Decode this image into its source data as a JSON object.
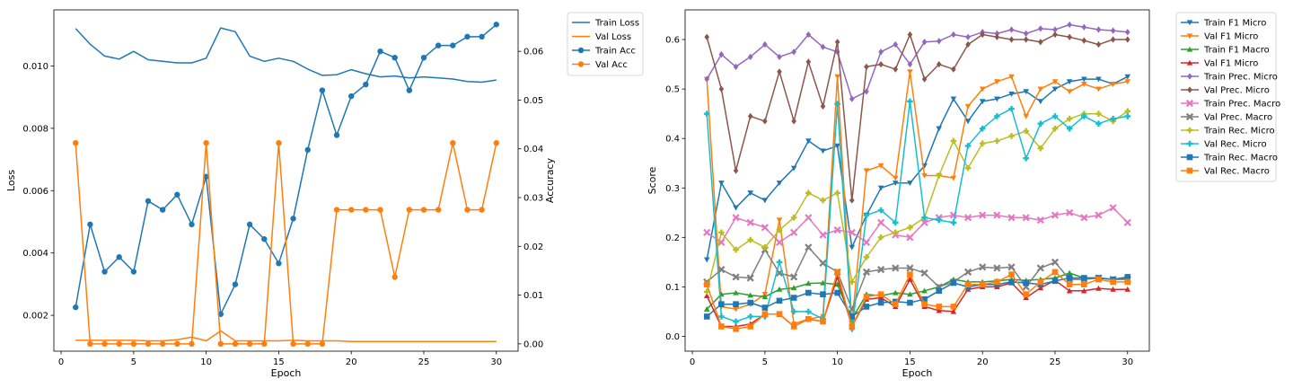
{
  "chart_data": [
    {
      "type": "line",
      "xlabel": "Epoch",
      "ylabel": "Loss",
      "ylabel_right": "Accuracy",
      "xlim": [
        -0.5,
        31.5
      ],
      "ylim": [
        0.00085,
        0.0118
      ],
      "ylim_right": [
        -0.0015,
        0.0685
      ],
      "x_ticks": [
        0,
        5,
        10,
        15,
        20,
        25,
        30
      ],
      "y_ticks": [
        0.002,
        0.004,
        0.006,
        0.008,
        0.01
      ],
      "y_ticks_right": [
        0.0,
        0.01,
        0.02,
        0.03,
        0.04,
        0.05,
        0.06
      ],
      "legend_position": "outside upper right",
      "x": [
        1,
        2,
        3,
        4,
        5,
        6,
        7,
        8,
        9,
        10,
        11,
        12,
        13,
        14,
        15,
        16,
        17,
        18,
        19,
        20,
        21,
        22,
        23,
        24,
        25,
        26,
        27,
        28,
        29,
        30
      ],
      "series": [
        {
          "name": "Train Loss",
          "axis": "left",
          "color": "#1f77b4",
          "marker": "none",
          "values": [
            0.0112,
            0.0107,
            0.01032,
            0.01022,
            0.01047,
            0.0102,
            0.01015,
            0.0101,
            0.0101,
            0.01025,
            0.01122,
            0.0111,
            0.01032,
            0.01015,
            0.01025,
            0.01015,
            0.0099,
            0.0097,
            0.00972,
            0.00988,
            0.00975,
            0.00965,
            0.00968,
            0.00962,
            0.00965,
            0.00962,
            0.00958,
            0.0095,
            0.00948,
            0.00955
          ]
        },
        {
          "name": "Val Loss",
          "axis": "left",
          "color": "#ff7f0e",
          "marker": "none",
          "values": [
            0.0012,
            0.0012,
            0.0012,
            0.0012,
            0.0012,
            0.00118,
            0.00118,
            0.00122,
            0.0013,
            0.00118,
            0.0015,
            0.00118,
            0.00118,
            0.00118,
            0.00118,
            0.0012,
            0.00118,
            0.00118,
            0.00118,
            0.00116,
            0.00116,
            0.00116,
            0.00116,
            0.00116,
            0.00116,
            0.00116,
            0.00116,
            0.00116,
            0.00116,
            0.00116
          ]
        },
        {
          "name": "Train Acc",
          "axis": "right",
          "color": "#1f77b4",
          "marker": "circle",
          "values": [
            0.0075,
            0.0245,
            0.0148,
            0.0178,
            0.0148,
            0.0293,
            0.0275,
            0.0306,
            0.0245,
            0.0343,
            0.0061,
            0.0122,
            0.0245,
            0.0215,
            0.0165,
            0.0257,
            0.0398,
            0.052,
            0.0428,
            0.0508,
            0.0532,
            0.06,
            0.0587,
            0.052,
            0.0587,
            0.0612,
            0.0612,
            0.063,
            0.063,
            0.0655
          ]
        },
        {
          "name": "Val Acc",
          "axis": "right",
          "color": "#ff7f0e",
          "marker": "circle",
          "values": [
            0.0412,
            0.0,
            0.0,
            0.0,
            0.0,
            0.0,
            0.0,
            0.0,
            0.0,
            0.0412,
            0.0,
            0.0,
            0.0,
            0.0,
            0.0412,
            0.0,
            0.0,
            0.0,
            0.0275,
            0.0275,
            0.0275,
            0.0275,
            0.0137,
            0.0275,
            0.0275,
            0.0275,
            0.0412,
            0.0275,
            0.0275,
            0.0412
          ]
        }
      ]
    },
    {
      "type": "line",
      "xlabel": "Epoch",
      "ylabel": "Score",
      "xlim": [
        -0.5,
        31.5
      ],
      "ylim": [
        -0.03,
        0.66
      ],
      "x_ticks": [
        0,
        5,
        10,
        15,
        20,
        25,
        30
      ],
      "y_ticks": [
        0.0,
        0.1,
        0.2,
        0.3,
        0.4,
        0.5,
        0.6
      ],
      "legend_position": "outside upper right",
      "x": [
        1,
        2,
        3,
        4,
        5,
        6,
        7,
        8,
        9,
        10,
        11,
        12,
        13,
        14,
        15,
        16,
        17,
        18,
        19,
        20,
        21,
        22,
        23,
        24,
        25,
        26,
        27,
        28,
        29,
        30
      ],
      "series": [
        {
          "name": "Train F1 Micro",
          "color": "#1f77b4",
          "marker": "triangle-down",
          "values": [
            0.155,
            0.31,
            0.26,
            0.29,
            0.275,
            0.31,
            0.34,
            0.395,
            0.375,
            0.385,
            0.18,
            0.245,
            0.3,
            0.31,
            0.31,
            0.345,
            0.42,
            0.48,
            0.435,
            0.475,
            0.48,
            0.49,
            0.495,
            0.475,
            0.5,
            0.515,
            0.52,
            0.52,
            0.51,
            0.525
          ]
        },
        {
          "name": "Val F1 Micro",
          "color": "#ff7f0e",
          "marker": "triangle-down",
          "values": [
            0.52,
            0.06,
            0.055,
            0.065,
            0.085,
            0.235,
            0.025,
            0.035,
            0.04,
            0.525,
            0.025,
            0.335,
            0.345,
            0.32,
            0.535,
            0.325,
            0.325,
            0.32,
            0.465,
            0.5,
            0.515,
            0.525,
            0.445,
            0.5,
            0.515,
            0.495,
            0.51,
            0.5,
            0.51,
            0.515
          ]
        },
        {
          "name": "Train F1 Macro",
          "color": "#2ca02c",
          "marker": "triangle-up",
          "values": [
            0.055,
            0.085,
            0.088,
            0.083,
            0.08,
            0.095,
            0.098,
            0.107,
            0.108,
            0.105,
            0.035,
            0.085,
            0.082,
            0.088,
            0.085,
            0.092,
            0.1,
            0.115,
            0.11,
            0.11,
            0.112,
            0.115,
            0.113,
            0.115,
            0.118,
            0.128,
            0.118,
            0.118,
            0.115,
            0.118
          ]
        },
        {
          "name": "Val F1 Micro",
          "color": "#d62728",
          "marker": "triangle-up",
          "values": [
            0.082,
            0.02,
            0.02,
            0.025,
            0.045,
            0.045,
            0.02,
            0.035,
            0.03,
            0.12,
            0.02,
            0.075,
            0.078,
            0.06,
            0.115,
            0.06,
            0.052,
            0.05,
            0.095,
            0.1,
            0.1,
            0.108,
            0.078,
            0.098,
            0.113,
            0.092,
            0.092,
            0.097,
            0.095,
            0.095
          ]
        },
        {
          "name": "Train Prec. Micro",
          "color": "#9467bd",
          "marker": "diamond",
          "values": [
            0.52,
            0.57,
            0.545,
            0.565,
            0.59,
            0.565,
            0.575,
            0.61,
            0.585,
            0.575,
            0.48,
            0.495,
            0.575,
            0.59,
            0.55,
            0.595,
            0.597,
            0.61,
            0.605,
            0.615,
            0.612,
            0.62,
            0.612,
            0.622,
            0.62,
            0.63,
            0.625,
            0.62,
            0.618,
            0.615
          ]
        },
        {
          "name": "Val Prec. Micro",
          "color": "#8c564b",
          "marker": "diamond",
          "values": [
            0.605,
            0.5,
            0.335,
            0.445,
            0.435,
            0.535,
            0.435,
            0.555,
            0.465,
            0.595,
            0.275,
            0.545,
            0.55,
            0.54,
            0.61,
            0.52,
            0.55,
            0.54,
            0.59,
            0.61,
            0.605,
            0.6,
            0.6,
            0.595,
            0.61,
            0.605,
            0.598,
            0.59,
            0.6,
            0.6
          ]
        },
        {
          "name": "Train Prec. Macro",
          "color": "#e377c2",
          "marker": "x",
          "values": [
            0.21,
            0.19,
            0.24,
            0.23,
            0.22,
            0.19,
            0.21,
            0.24,
            0.205,
            0.215,
            0.21,
            0.19,
            0.23,
            0.205,
            0.2,
            0.23,
            0.24,
            0.245,
            0.24,
            0.245,
            0.245,
            0.24,
            0.24,
            0.235,
            0.245,
            0.25,
            0.24,
            0.245,
            0.26,
            0.23
          ]
        },
        {
          "name": "Val Prec. Macro",
          "color": "#7f7f7f",
          "marker": "x",
          "values": [
            0.11,
            0.135,
            0.12,
            0.118,
            0.175,
            0.128,
            0.12,
            0.18,
            0.148,
            0.13,
            0.055,
            0.13,
            0.135,
            0.138,
            0.138,
            0.128,
            0.1,
            0.11,
            0.13,
            0.14,
            0.138,
            0.14,
            0.1,
            0.138,
            0.15,
            0.115,
            0.115,
            0.118,
            0.115,
            0.115
          ]
        },
        {
          "name": "Train Rec. Micro",
          "color": "#bcbd22",
          "marker": "plus",
          "values": [
            0.09,
            0.21,
            0.175,
            0.195,
            0.18,
            0.215,
            0.24,
            0.29,
            0.275,
            0.29,
            0.11,
            0.16,
            0.2,
            0.21,
            0.22,
            0.24,
            0.325,
            0.395,
            0.34,
            0.39,
            0.395,
            0.405,
            0.415,
            0.38,
            0.42,
            0.44,
            0.45,
            0.45,
            0.435,
            0.455
          ]
        },
        {
          "name": "Val Rec. Micro",
          "color": "#17becf",
          "marker": "plus",
          "values": [
            0.45,
            0.04,
            0.03,
            0.04,
            0.04,
            0.15,
            0.05,
            0.05,
            0.035,
            0.47,
            0.015,
            0.245,
            0.255,
            0.23,
            0.475,
            0.24,
            0.235,
            0.23,
            0.385,
            0.42,
            0.445,
            0.46,
            0.36,
            0.43,
            0.445,
            0.42,
            0.445,
            0.43,
            0.44,
            0.445
          ]
        },
        {
          "name": "Train Rec. Macro",
          "color": "#1f77b4",
          "marker": "square",
          "values": [
            0.04,
            0.065,
            0.065,
            0.068,
            0.058,
            0.072,
            0.078,
            0.088,
            0.085,
            0.088,
            0.04,
            0.06,
            0.068,
            0.07,
            0.068,
            0.075,
            0.092,
            0.108,
            0.1,
            0.105,
            0.105,
            0.11,
            0.108,
            0.105,
            0.112,
            0.118,
            0.118,
            0.118,
            0.115,
            0.12
          ]
        },
        {
          "name": "Val Rec. Macro",
          "color": "#ff7f0e",
          "marker": "square",
          "values": [
            0.105,
            0.02,
            0.015,
            0.02,
            0.045,
            0.045,
            0.02,
            0.035,
            0.03,
            0.13,
            0.02,
            0.08,
            0.085,
            0.065,
            0.125,
            0.065,
            0.06,
            0.06,
            0.105,
            0.105,
            0.11,
            0.125,
            0.085,
            0.11,
            0.13,
            0.105,
            0.105,
            0.115,
            0.11,
            0.11
          ]
        }
      ]
    }
  ]
}
